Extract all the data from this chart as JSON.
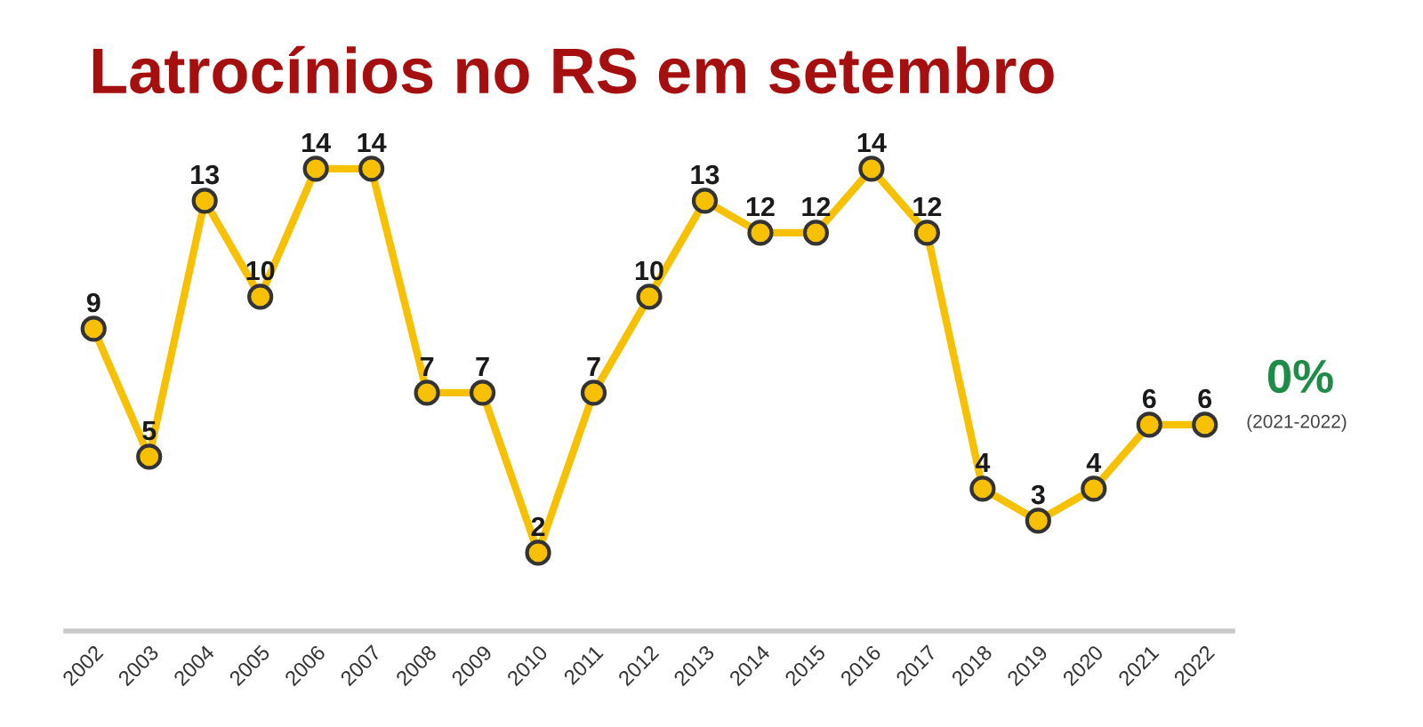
{
  "chart_data": {
    "type": "line",
    "title": "Latrocínios no RS em setembro",
    "categories": [
      "2002",
      "2003",
      "2004",
      "2005",
      "2006",
      "2007",
      "2008",
      "2009",
      "2010",
      "2011",
      "2012",
      "2013",
      "2014",
      "2015",
      "2016",
      "2017",
      "2018",
      "2019",
      "2020",
      "2021",
      "2022"
    ],
    "series": [
      {
        "color": "#f7c000",
        "values": [
          9,
          5,
          13,
          10,
          14,
          14,
          7,
          7,
          2,
          7,
          10,
          13,
          12,
          12,
          14,
          12,
          4,
          3,
          4,
          6,
          6
        ]
      }
    ],
    "marker": "circle",
    "line_style": "solid",
    "data_labels": true,
    "grid": false,
    "tick_labels": "x",
    "annotations": [
      "0%",
      "(2021-2022)"
    ]
  }
}
